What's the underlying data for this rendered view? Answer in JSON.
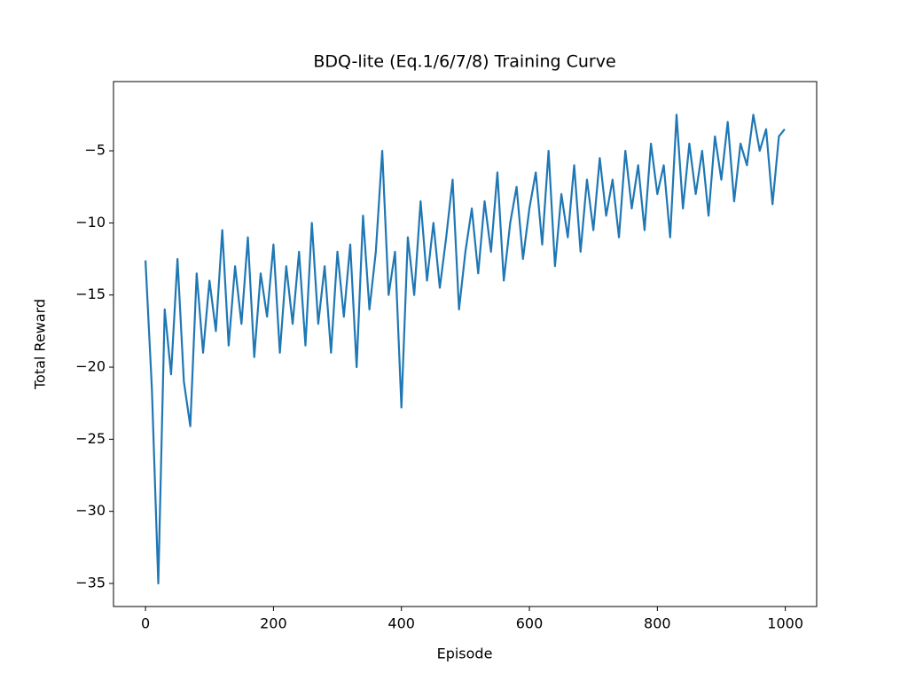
{
  "chart_data": {
    "type": "line",
    "title": "BDQ-lite (Eq.1/6/7/8) Training Curve",
    "x_label": "Episode",
    "y_label": "Total Reward",
    "x": [
      0,
      10,
      20,
      30,
      40,
      50,
      60,
      70,
      80,
      90,
      100,
      110,
      120,
      130,
      140,
      150,
      160,
      170,
      180,
      190,
      200,
      210,
      220,
      230,
      240,
      250,
      260,
      270,
      280,
      290,
      300,
      310,
      320,
      330,
      340,
      350,
      360,
      370,
      380,
      390,
      400,
      410,
      420,
      430,
      440,
      450,
      460,
      470,
      480,
      490,
      500,
      510,
      520,
      530,
      540,
      550,
      560,
      570,
      580,
      590,
      600,
      610,
      620,
      630,
      640,
      650,
      660,
      670,
      680,
      690,
      700,
      710,
      720,
      730,
      740,
      750,
      760,
      770,
      780,
      790,
      800,
      810,
      820,
      830,
      840,
      850,
      860,
      870,
      880,
      890,
      900,
      910,
      920,
      930,
      940,
      950,
      960,
      970,
      980,
      990,
      999
    ],
    "series": [
      {
        "name": "Total Reward",
        "color": "#1f77b4",
        "values": [
          -12.6,
          -21.5,
          -35.0,
          -16,
          -20.5,
          -12.5,
          -21,
          -24.1,
          -13.5,
          -19,
          -14,
          -17.5,
          -10.5,
          -18.5,
          -13,
          -17,
          -11,
          -19.3,
          -13.5,
          -16.5,
          -11.5,
          -19,
          -13,
          -17,
          -12,
          -18.5,
          -10,
          -17,
          -13,
          -19,
          -12,
          -16.5,
          -11.5,
          -20,
          -9.5,
          -16,
          -12,
          -5,
          -15,
          -12,
          -22.8,
          -11,
          -15,
          -8.5,
          -14,
          -10,
          -14.5,
          -11,
          -7,
          -16,
          -12,
          -9,
          -13.5,
          -8.5,
          -12,
          -6.5,
          -14,
          -10,
          -7.5,
          -12.5,
          -9,
          -6.5,
          -11.5,
          -5,
          -13,
          -8,
          -11,
          -6,
          -12,
          -7,
          -10.5,
          -5.5,
          -9.5,
          -7,
          -11,
          -5,
          -9,
          -6,
          -10.5,
          -4.5,
          -8,
          -6,
          -11,
          -2.5,
          -9,
          -4.5,
          -8,
          -5,
          -9.5,
          -4,
          -7,
          -3,
          -8.5,
          -4.5,
          -6,
          -2.5,
          -5,
          -3.5,
          -8.7,
          -4,
          -3.5
        ]
      }
    ],
    "xlim": [
      -50,
      1049
    ],
    "ylim": [
      -36.6,
      -0.2
    ],
    "xticks": [
      0,
      200,
      400,
      600,
      800,
      1000
    ],
    "yticks": [
      {
        "value": -35,
        "label": "−35"
      },
      {
        "value": -30,
        "label": "−30"
      },
      {
        "value": -25,
        "label": "−25"
      },
      {
        "value": -20,
        "label": "−20"
      },
      {
        "value": -15,
        "label": "−15"
      },
      {
        "value": -10,
        "label": "−10"
      },
      {
        "value": -5,
        "label": "−5"
      }
    ],
    "grid": false
  }
}
